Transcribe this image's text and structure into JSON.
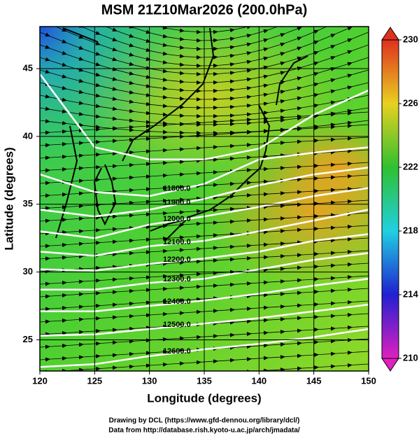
{
  "chart_data": {
    "type": "contour",
    "title": "MSM 21Z10Mar2026 (200.0hPa)",
    "x_label": "Longitude (degrees)",
    "y_label": "Latitude  (degrees)",
    "footer": [
      "Drawing by DCL (https://www.gfd-dennou.org/library/dcl/)",
      "Data from http://database.rish.kyoto-u.ac.jp/arch/jmadata/"
    ],
    "xlim": [
      120,
      150
    ],
    "ylim": [
      22.7,
      48.1
    ],
    "xticks": [
      120,
      125,
      130,
      135,
      140,
      145,
      150
    ],
    "yticks": [
      25,
      30,
      35,
      40,
      45
    ],
    "grid": true,
    "contour_lons": [
      120,
      125,
      130,
      135,
      140,
      145,
      150
    ],
    "contours": [
      {
        "lat": [
          44.6,
          39.2,
          38.3,
          38.3,
          39.1,
          41.6,
          43.4
        ]
      },
      {
        "label": "11800.0",
        "lat": [
          37.2,
          35.9,
          35.6,
          36.5,
          38.3,
          38.8,
          39.2
        ]
      },
      {
        "label": "11900.0",
        "lat": [
          34.6,
          34.1,
          34.6,
          35.4,
          36.4,
          37.2,
          37.7
        ]
      },
      {
        "label": "12000.0",
        "lat": [
          33.0,
          32.5,
          33.5,
          34.1,
          34.8,
          35.6,
          36.2
        ]
      },
      {
        "label": "12100.0",
        "lat": [
          31.5,
          31.2,
          31.9,
          32.3,
          33.0,
          33.8,
          34.6
        ]
      },
      {
        "label": "12200.0",
        "lat": [
          30.2,
          30.1,
          30.6,
          31.0,
          31.5,
          32.3,
          32.8
        ]
      },
      {
        "label": "12300.0",
        "lat": [
          28.7,
          28.7,
          29.2,
          29.5,
          30.2,
          30.9,
          31.4
        ]
      },
      {
        "label": "12400.0",
        "lat": [
          27.1,
          27.1,
          27.5,
          27.9,
          28.4,
          29.0,
          29.5
        ]
      },
      {
        "label": "12500.0",
        "lat": [
          25.3,
          25.4,
          25.8,
          26.2,
          26.6,
          27.1,
          27.6
        ]
      },
      {
        "label": "12600.0",
        "lat": [
          23.0,
          23.2,
          23.8,
          24.3,
          24.7,
          25.2,
          25.8
        ]
      }
    ],
    "contour_color": "#ffffff",
    "colorbar": {
      "lim": [
        210,
        230
      ],
      "ticks": [
        210,
        214,
        218,
        222,
        226,
        230
      ],
      "colors": [
        "#e020c0",
        "#2020d0",
        "#20d0e0",
        "#30c030",
        "#e8d020",
        "#e03020"
      ]
    }
  }
}
